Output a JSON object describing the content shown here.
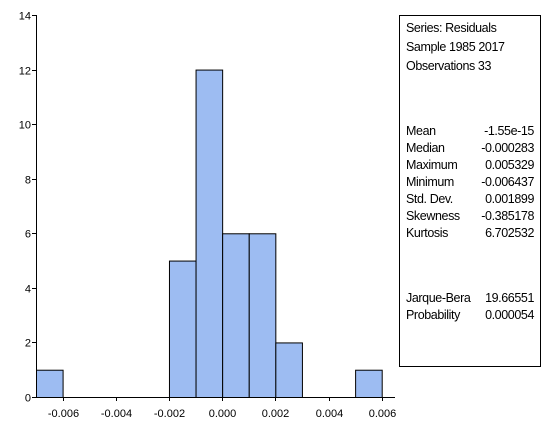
{
  "chart_data": {
    "type": "bar",
    "bins": [
      {
        "from": -0.007,
        "to": -0.006,
        "count": 1
      },
      {
        "from": -0.006,
        "to": -0.005,
        "count": 0
      },
      {
        "from": -0.005,
        "to": -0.004,
        "count": 0
      },
      {
        "from": -0.004,
        "to": -0.003,
        "count": 0
      },
      {
        "from": -0.003,
        "to": -0.002,
        "count": 0
      },
      {
        "from": -0.002,
        "to": -0.001,
        "count": 5
      },
      {
        "from": -0.001,
        "to": 0.0,
        "count": 12
      },
      {
        "from": 0.0,
        "to": 0.001,
        "count": 6
      },
      {
        "from": 0.001,
        "to": 0.002,
        "count": 6
      },
      {
        "from": 0.002,
        "to": 0.003,
        "count": 2
      },
      {
        "from": 0.003,
        "to": 0.004,
        "count": 0
      },
      {
        "from": 0.004,
        "to": 0.005,
        "count": 0
      },
      {
        "from": 0.005,
        "to": 0.006,
        "count": 1
      }
    ],
    "xlim": [
      -0.007,
      0.0065
    ],
    "ylim": [
      0,
      14
    ],
    "x_ticks": [
      "-0.006",
      "-0.004",
      "-0.002",
      "0.000",
      "0.002",
      "0.004",
      "0.006"
    ],
    "x_tick_values": [
      -0.006,
      -0.004,
      -0.002,
      0.0,
      0.002,
      0.004,
      0.006
    ],
    "y_ticks": [
      "0",
      "2",
      "4",
      "6",
      "8",
      "10",
      "12",
      "14"
    ],
    "y_tick_values": [
      0,
      2,
      4,
      6,
      8,
      10,
      12,
      14
    ],
    "bar_color": "#9DBCF2",
    "edge_color": "#000000",
    "grid": false,
    "xlabel": "",
    "ylabel": ""
  },
  "stats": {
    "series": "Series: Residuals",
    "sample": "Sample 1985 2017",
    "observations": "Observations 33",
    "rows": [
      {
        "label": "Mean",
        "value": "-1.55e-15"
      },
      {
        "label": "Median",
        "value": "-0.000283"
      },
      {
        "label": "Maximum",
        "value": "0.005329"
      },
      {
        "label": "Minimum",
        "value": "-0.006437"
      },
      {
        "label": "Std. Dev.",
        "value": "0.001899"
      },
      {
        "label": "Skewness",
        "value": "-0.385178"
      },
      {
        "label": "Kurtosis",
        "value": "6.702532"
      }
    ],
    "test_rows": [
      {
        "label": "Jarque-Bera",
        "value": "19.66551"
      },
      {
        "label": "Probability",
        "value": "0.000054"
      }
    ]
  }
}
